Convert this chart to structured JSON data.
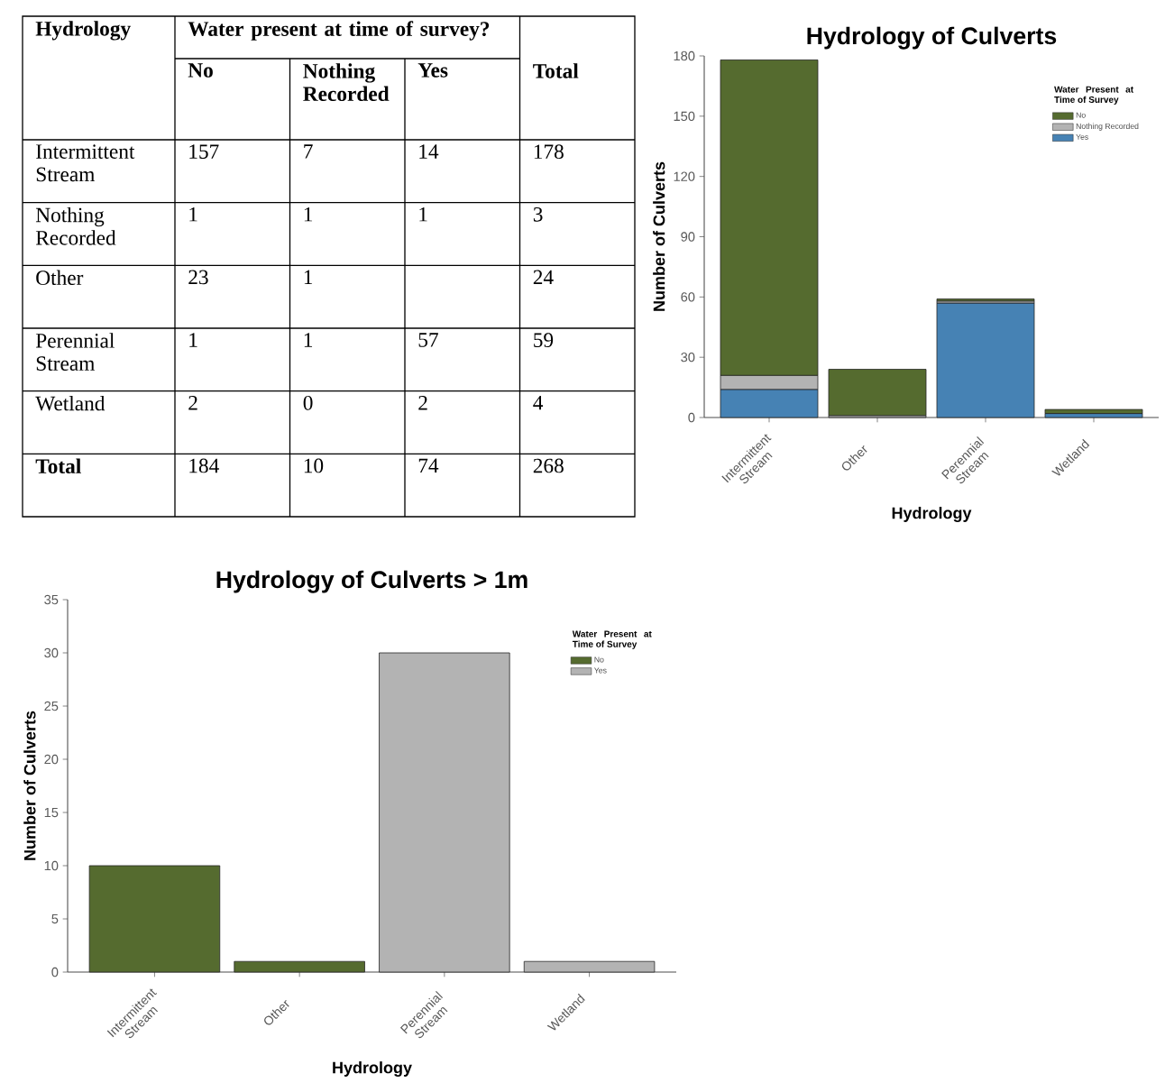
{
  "chart_data": [
    {
      "type": "heatmap",
      "xlabel": "Water present at time of survey?",
      "ylabel": "Hydrology",
      "categories": [
        "No",
        "Nothing Recorded",
        "Yes",
        "Total"
      ],
      "y_categories": [
        "Intermittent Stream",
        "Nothing Recorded",
        "Other",
        "Perennial Stream",
        "Wetland",
        "Total"
      ],
      "data_labels": true,
      "cells": [
        [
          157,
          7,
          14,
          178
        ],
        [
          1,
          1,
          1,
          3
        ],
        [
          23,
          1,
          null,
          24
        ],
        [
          1,
          1,
          57,
          59
        ],
        [
          2,
          0,
          2,
          4
        ],
        [
          184,
          10,
          74,
          268
        ]
      ]
    },
    {
      "type": "bar",
      "title": "Hydrology of Culverts",
      "xlabel": "Hydrology",
      "ylabel": "Number of Culverts",
      "categories": [
        "Intermittent Stream",
        "Other",
        "Perennial Stream",
        "Wetland"
      ],
      "stacked": true,
      "ylim": [
        0,
        180
      ],
      "yticks": [
        0,
        30,
        60,
        90,
        120,
        150,
        180
      ],
      "legend": "top right",
      "legend_title": "Water Present at Time of Survey",
      "series": [
        {
          "name": "Yes",
          "color": "#4682b4",
          "values": [
            14,
            null,
            57,
            2
          ]
        },
        {
          "name": "Nothing Recorded",
          "color": "#b3b3b3",
          "values": [
            7,
            1,
            1,
            null
          ]
        },
        {
          "name": "No",
          "color": "#556b2f",
          "values": [
            157,
            23,
            1,
            2
          ]
        }
      ]
    },
    {
      "type": "bar",
      "title": "Hydrology of Culverts > 1m",
      "xlabel": "Hydrology",
      "ylabel": "Number of Culverts",
      "categories": [
        "Intermittent Stream",
        "Other",
        "Perennial Stream",
        "Wetland"
      ],
      "stacked": true,
      "ylim": [
        0,
        35
      ],
      "yticks": [
        0,
        5,
        10,
        15,
        20,
        25,
        30,
        35
      ],
      "legend": "top right",
      "legend_title": "Water Present at Time of Survey",
      "series": [
        {
          "name": "Yes",
          "color": "#b3b3b3",
          "values": [
            null,
            null,
            30,
            1
          ]
        },
        {
          "name": "No",
          "color": "#556b2f",
          "values": [
            10,
            1,
            null,
            null
          ]
        }
      ]
    }
  ]
}
